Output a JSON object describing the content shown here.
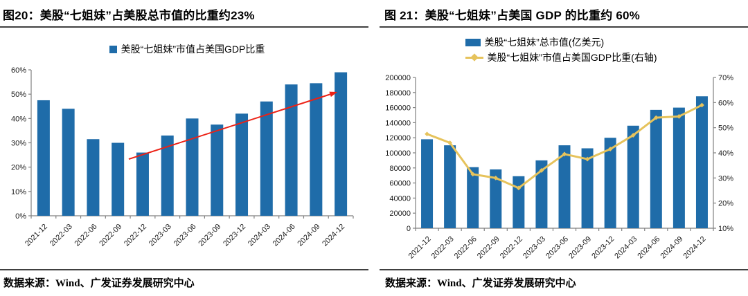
{
  "source_note": "数据来源：Wind、广发证券发展研究中心",
  "colors": {
    "bar": "#1F6CA9",
    "line": "#E6C35C",
    "arrow": "#EC2115",
    "axis": "#808080",
    "tick_label": "#1A1A1A",
    "rule": "#404040"
  },
  "chart_data": [
    {
      "type": "bar",
      "title": "图20：美股“七姐妹”占美股总市值的比重约23%",
      "legend": [
        "美股“七姐妹”市值占美国GDP比重"
      ],
      "legend_position": "top",
      "grid": false,
      "categories": [
        "2021-12",
        "2022-03",
        "2022-06",
        "2022-09",
        "2022-12",
        "2023-03",
        "2023-06",
        "2023-09",
        "2023-12",
        "2024-03",
        "2024-06",
        "2024-09",
        "2024-12"
      ],
      "values": [
        47.5,
        44,
        31.5,
        30,
        26,
        33,
        40,
        37.5,
        42,
        47,
        54,
        54.5,
        59
      ],
      "xlabel": "",
      "ylabel": "",
      "y_axis": {
        "min": 0,
        "max": 60,
        "step": 10,
        "suffix": "%"
      },
      "annotation_arrow": {
        "from_index": 3.44,
        "from_value": 23.3,
        "to_index": 11.86,
        "to_value": 50.9
      }
    },
    {
      "type": "combo",
      "title": "图 21：美股“七姐妹”占美国 GDP 的比重约 60%",
      "legend_position": "top",
      "grid": false,
      "categories": [
        "2021-12",
        "2022-03",
        "2022-06",
        "2022-09",
        "2022-12",
        "2023-03",
        "2023-06",
        "2023-09",
        "2023-12",
        "2024-03",
        "2024-06",
        "2024-09",
        "2024-12"
      ],
      "series": [
        {
          "name": "美股“七姐妹”总市值(亿美元)",
          "type": "bar",
          "axis": "left",
          "values": [
            118000,
            110000,
            81000,
            78000,
            69000,
            90000,
            110000,
            106000,
            120000,
            136000,
            157000,
            160000,
            175000
          ]
        },
        {
          "name": "美股“七姐妹”市值占美国GDP比重(右轴)",
          "type": "line",
          "axis": "right",
          "values": [
            47.5,
            44,
            31.5,
            30,
            26,
            33,
            39.5,
            37.5,
            41.5,
            47,
            54,
            54.5,
            59
          ]
        }
      ],
      "y_axis_left": {
        "min": 0,
        "max": 200000,
        "step": 20000,
        "suffix": ""
      },
      "y_axis_right": {
        "min": 10,
        "max": 70,
        "step": 10,
        "suffix": "%"
      }
    }
  ]
}
